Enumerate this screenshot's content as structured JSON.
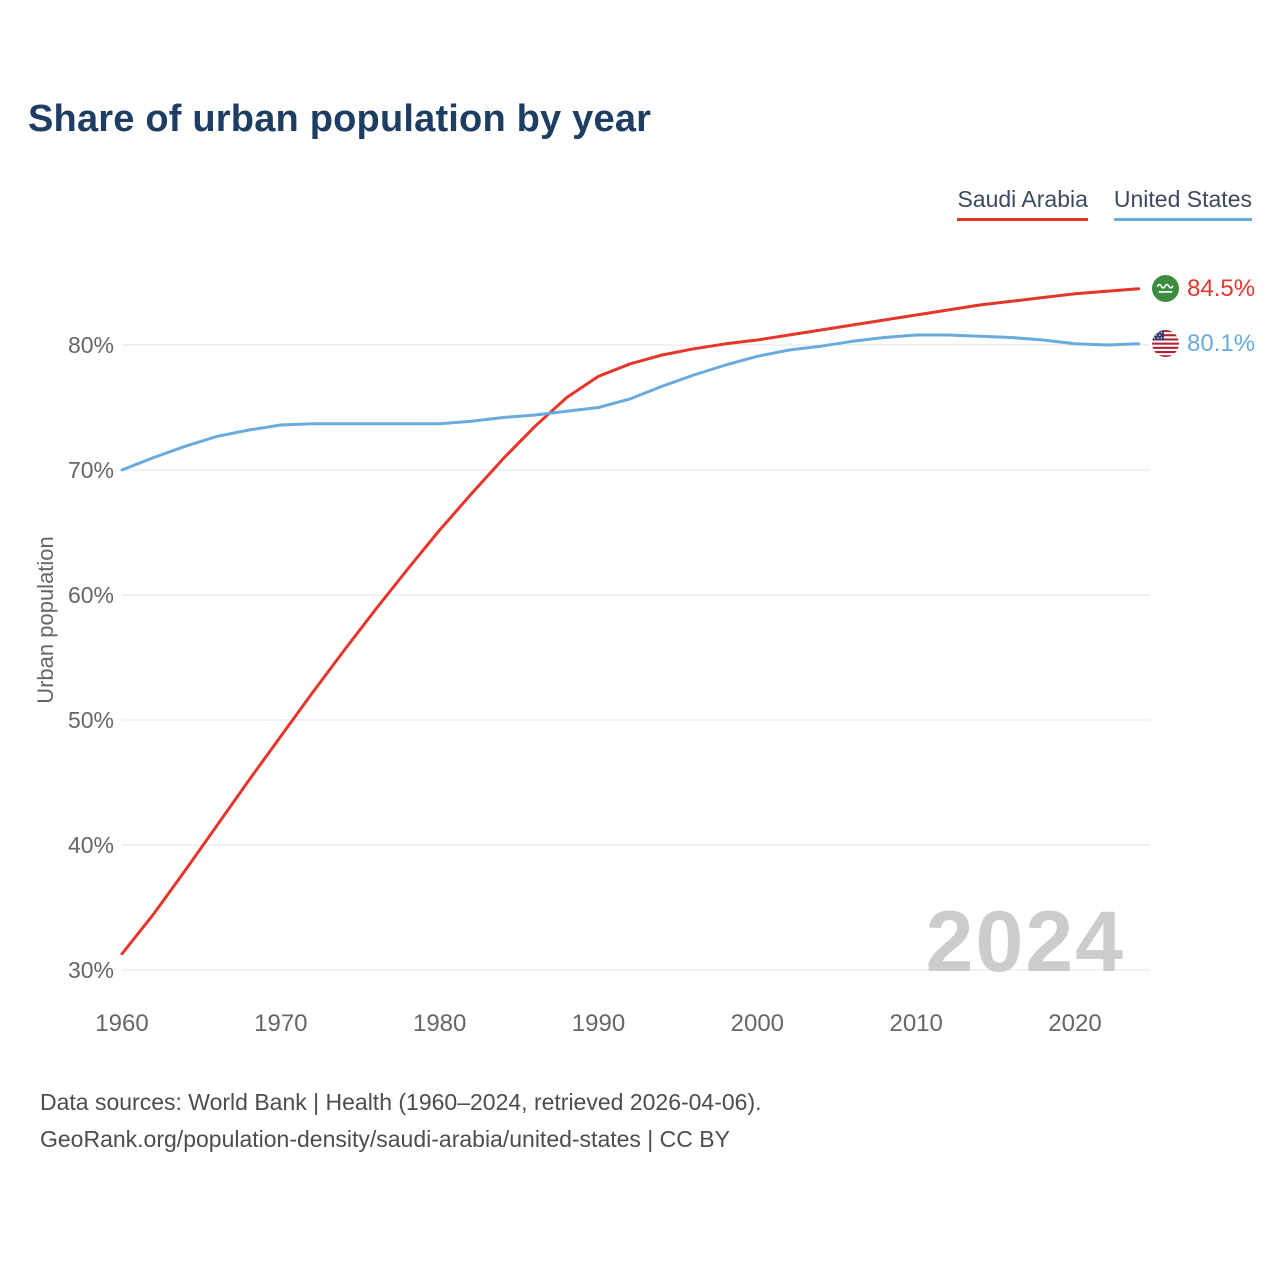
{
  "chart": {
    "title": "Share of urban population by year",
    "ylabel": "Urban population",
    "watermark": "2024"
  },
  "legend": [
    {
      "label": "Saudi Arabia",
      "color": "#e6352b"
    },
    {
      "label": "United States",
      "color": "#6aabdd"
    }
  ],
  "footer": {
    "line1": "Data sources: World Bank | Health (1960–2024, retrieved 2026-04-06).",
    "line2": "GeoRank.org/population-density/saudi-arabia/united-states | CC BY"
  },
  "chart_data": {
    "type": "line",
    "title": "Share of urban population by year",
    "xlabel": "",
    "ylabel": "Urban population",
    "xlim": [
      1960,
      2024
    ],
    "ylim": [
      30,
      86
    ],
    "x_ticks": [
      1960,
      1970,
      1980,
      1990,
      2000,
      2010,
      2020
    ],
    "y_ticks": [
      30,
      40,
      50,
      60,
      70,
      80
    ],
    "grid": "horizontal",
    "legend_position": "top-right",
    "x": [
      1960,
      1962,
      1964,
      1966,
      1968,
      1970,
      1972,
      1974,
      1976,
      1978,
      1980,
      1982,
      1984,
      1986,
      1988,
      1990,
      1992,
      1994,
      1996,
      1998,
      2000,
      2002,
      2004,
      2006,
      2008,
      2010,
      2012,
      2014,
      2016,
      2018,
      2020,
      2022,
      2024
    ],
    "series": [
      {
        "name": "Saudi Arabia",
        "color": "#e6352b",
        "end_label": "84.5%",
        "values": [
          31.3,
          34.5,
          38.0,
          41.6,
          45.2,
          48.7,
          52.2,
          55.6,
          58.9,
          62.1,
          65.2,
          68.1,
          70.9,
          73.5,
          75.8,
          77.5,
          78.5,
          79.2,
          79.7,
          80.1,
          80.4,
          80.8,
          81.2,
          81.6,
          82.0,
          82.4,
          82.8,
          83.2,
          83.5,
          83.8,
          84.1,
          84.3,
          84.5
        ]
      },
      {
        "name": "United States",
        "color": "#6aabdd",
        "end_label": "80.1%",
        "values": [
          70.0,
          71.0,
          71.9,
          72.7,
          73.2,
          73.6,
          73.7,
          73.7,
          73.7,
          73.7,
          73.7,
          73.9,
          74.2,
          74.4,
          74.7,
          75.0,
          75.7,
          76.7,
          77.6,
          78.4,
          79.1,
          79.6,
          79.9,
          80.3,
          80.6,
          80.8,
          80.8,
          80.7,
          80.6,
          80.4,
          80.1,
          80.0,
          80.1
        ]
      }
    ]
  }
}
